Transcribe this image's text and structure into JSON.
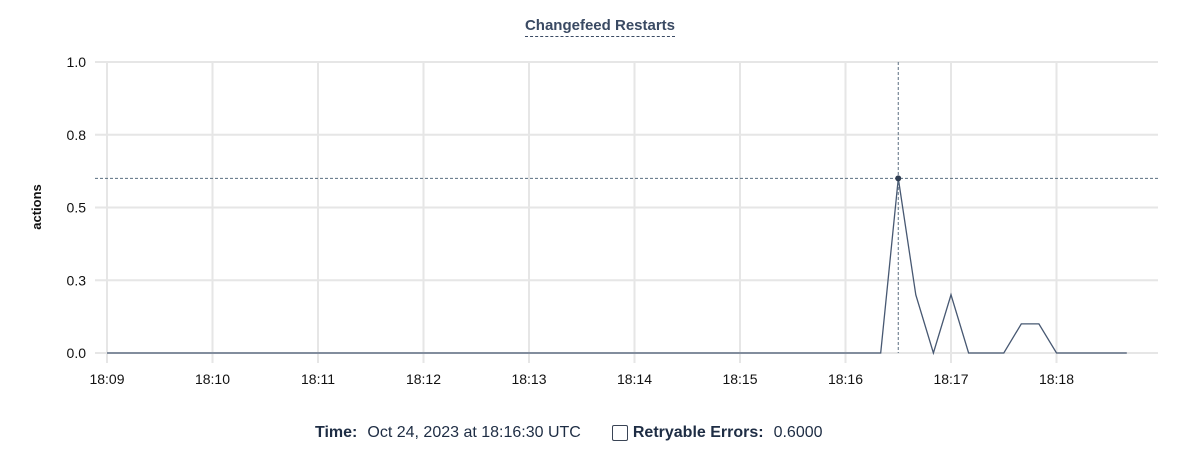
{
  "chart_data": {
    "type": "line",
    "title": "Changefeed Restarts",
    "ylabel": "actions",
    "xlabel": "",
    "ylim": [
      0,
      1.0
    ],
    "y_ticks": [
      0,
      0.25,
      0.5,
      0.75,
      1.0
    ],
    "y_tick_labels": [
      "0.0",
      "0.3",
      "0.5",
      "0.8",
      "1.0"
    ],
    "x_range": [
      "18:09:00",
      "18:18:40"
    ],
    "x_ticks": [
      "18:09",
      "18:10",
      "18:11",
      "18:12",
      "18:13",
      "18:14",
      "18:15",
      "18:16",
      "18:17",
      "18:18"
    ],
    "grid": true,
    "color": "#475872",
    "x": [
      "18:09:00",
      "18:09:10",
      "18:09:20",
      "18:09:30",
      "18:09:40",
      "18:09:50",
      "18:10:00",
      "18:10:10",
      "18:10:20",
      "18:10:30",
      "18:10:40",
      "18:10:50",
      "18:11:00",
      "18:11:10",
      "18:11:20",
      "18:11:30",
      "18:11:40",
      "18:11:50",
      "18:12:00",
      "18:12:10",
      "18:12:20",
      "18:12:30",
      "18:12:40",
      "18:12:50",
      "18:13:00",
      "18:13:10",
      "18:13:20",
      "18:13:30",
      "18:13:40",
      "18:13:50",
      "18:14:00",
      "18:14:10",
      "18:14:20",
      "18:14:30",
      "18:14:40",
      "18:14:50",
      "18:15:00",
      "18:15:10",
      "18:15:20",
      "18:15:30",
      "18:15:40",
      "18:15:50",
      "18:16:00",
      "18:16:10",
      "18:16:20",
      "18:16:30",
      "18:16:40",
      "18:16:50",
      "18:17:00",
      "18:17:10",
      "18:17:20",
      "18:17:30",
      "18:17:40",
      "18:17:50",
      "18:18:00",
      "18:18:10",
      "18:18:20",
      "18:18:30",
      "18:18:40"
    ],
    "series": [
      {
        "name": "Retryable Errors",
        "values": [
          0,
          0,
          0,
          0,
          0,
          0,
          0,
          0,
          0,
          0,
          0,
          0,
          0,
          0,
          0,
          0,
          0,
          0,
          0,
          0,
          0,
          0,
          0,
          0,
          0,
          0,
          0,
          0,
          0,
          0,
          0,
          0,
          0,
          0,
          0,
          0,
          0,
          0,
          0,
          0,
          0,
          0,
          0,
          0,
          0,
          0.6,
          0.2,
          0,
          0.2,
          0,
          0,
          0,
          0.1,
          0.1,
          0,
          0,
          0,
          0,
          0
        ]
      }
    ],
    "hover": {
      "time": "18:16:30",
      "value": 0.6
    }
  },
  "legend": {
    "time_label": "Time:",
    "time_value": "Oct 24, 2023 at 18:16:30 UTC",
    "series_label": "Retryable Errors:",
    "series_value": "0.6000"
  }
}
